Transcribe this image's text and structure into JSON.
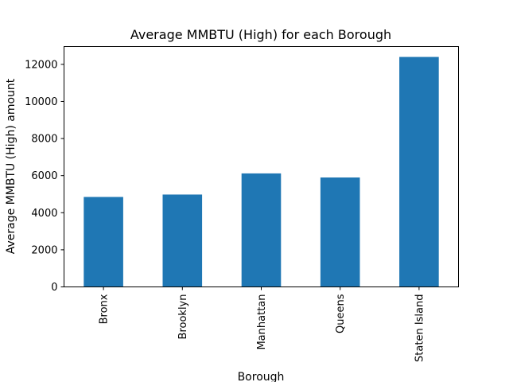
{
  "chart_data": {
    "type": "bar",
    "title": "Average MMBTU (High) for each Borough",
    "xlabel": "Borough",
    "ylabel": "Average MMBTU (High) amount",
    "categories": [
      "Bronx",
      "Brooklyn",
      "Manhattan",
      "Queens",
      "Staten Island"
    ],
    "values": [
      4850,
      4980,
      6120,
      5900,
      12400
    ],
    "ylim": [
      0,
      12960
    ],
    "yticks": [
      0,
      2000,
      4000,
      6000,
      8000,
      10000,
      12000
    ],
    "ytick_labels": [
      "0",
      "2000",
      "4000",
      "6000",
      "8000",
      "10000",
      "12000"
    ],
    "grid": false,
    "legend": "none",
    "bar_color": "#1f77b4"
  }
}
